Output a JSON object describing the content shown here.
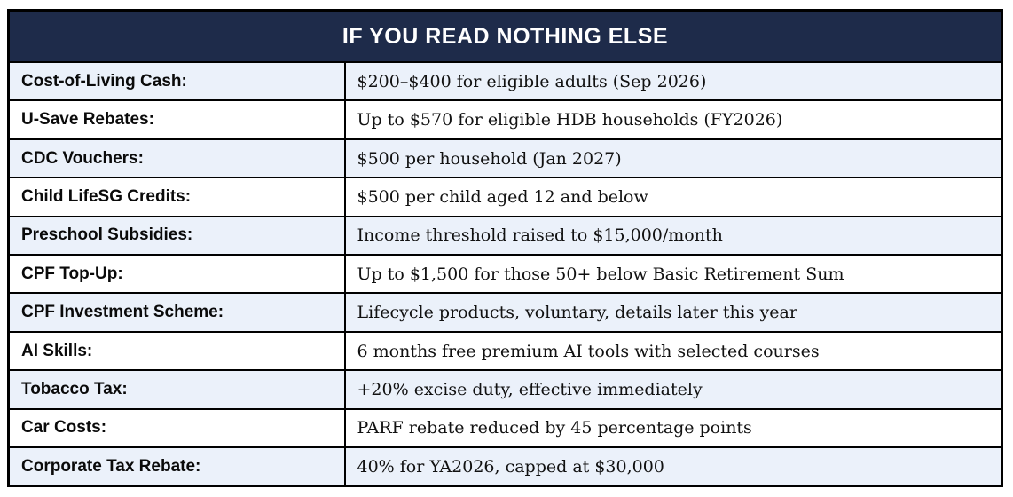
{
  "colors": {
    "header_bg": "#1e2b4a",
    "header_text": "#ffffff",
    "row_alt_bg": "#ebf1fa",
    "row_bg": "#ffffff",
    "border": "#000000"
  },
  "table": {
    "header": "IF YOU READ NOTHING ELSE",
    "rows": [
      {
        "label": "Cost-of-Living Cash:",
        "value": "$200–$400 for eligible adults (Sep 2026)"
      },
      {
        "label": "U-Save Rebates:",
        "value": "Up to $570 for eligible HDB households (FY2026)"
      },
      {
        "label": "CDC Vouchers:",
        "value": "$500 per household (Jan 2027)"
      },
      {
        "label": "Child LifeSG Credits:",
        "value": "$500 per child aged 12 and below"
      },
      {
        "label": "Preschool Subsidies:",
        "value": "Income threshold raised to $15,000/month"
      },
      {
        "label": "CPF Top-Up:",
        "value": "Up to $1,500 for those 50+ below Basic Retirement Sum"
      },
      {
        "label": "CPF Investment Scheme:",
        "value": "Lifecycle products, voluntary, details later this year"
      },
      {
        "label": "AI Skills:",
        "value": "6 months free premium AI tools with selected courses"
      },
      {
        "label": "Tobacco Tax:",
        "value": "+20% excise duty, effective immediately"
      },
      {
        "label": "Car Costs:",
        "value": "PARF rebate reduced by 45 percentage points"
      },
      {
        "label": "Corporate Tax Rebate:",
        "value": "40% for YA2026, capped at $30,000"
      }
    ]
  }
}
